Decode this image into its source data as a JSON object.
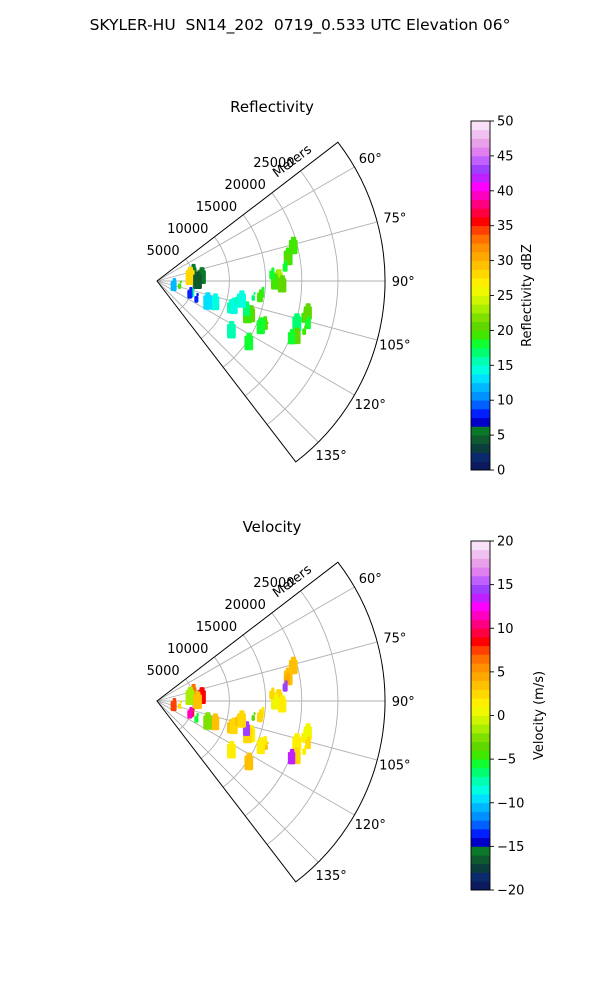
{
  "figure": {
    "title": "SKYLER-HU  SN14_202  0719_0.533 UTC Elevation 06°"
  },
  "chart_data": [
    {
      "type": "heatmap",
      "subtype": "radar-ppi-sector",
      "title": "Reflectivity",
      "radial_axis_label": "Meters",
      "radial_ticks": [
        5000,
        10000,
        15000,
        20000,
        25000
      ],
      "radial_tick_labels": [
        "5000",
        "10000",
        "15000",
        "20000",
        "25000"
      ],
      "r_max": 31500,
      "angle_ticks": [
        60,
        75,
        90,
        105,
        120,
        135
      ],
      "angle_tick_labels": [
        "60°",
        "75°",
        "90°",
        "105°",
        "120°",
        "135°"
      ],
      "angle_range_deg": [
        52.5,
        142.5
      ],
      "grid": true,
      "colorbar": {
        "label": "Reflectivity dBZ",
        "min": 0,
        "max": 50,
        "ticks": [
          0,
          5,
          10,
          15,
          20,
          25,
          30,
          35,
          40,
          45,
          50
        ],
        "tick_labels": [
          "0",
          "5",
          "10",
          "15",
          "20",
          "25",
          "30",
          "35",
          "40",
          "45",
          "50"
        ],
        "colors": [
          "#0a1a5c",
          "#0b2a6e",
          "#0b3d3d",
          "#0e5a2e",
          "#0a7a2a",
          "#0000c8",
          "#0020ff",
          "#0060ff",
          "#0090ff",
          "#00b8ff",
          "#00e0ff",
          "#00ffe0",
          "#00ffb0",
          "#00ff70",
          "#10ff30",
          "#40e800",
          "#60d800",
          "#80e000",
          "#a8ee00",
          "#d0f500",
          "#f0f800",
          "#ffee00",
          "#ffd800",
          "#ffc000",
          "#ffa800",
          "#ff9000",
          "#ff7000",
          "#ff4000",
          "#ff0000",
          "#ff0040",
          "#ff0080",
          "#ff00c0",
          "#ff00ff",
          "#c020ff",
          "#a040ff",
          "#c060ff",
          "#e080f0",
          "#e8a0e8",
          "#f0c0f0",
          "#f8e0f8"
        ]
      },
      "echoes": [
        {
          "r": 16500,
          "az": 88,
          "v": 20
        },
        {
          "r": 16800,
          "az": 89,
          "v": 23
        },
        {
          "r": 17000,
          "az": 90,
          "v": 22
        },
        {
          "r": 16300,
          "az": 91,
          "v": 19
        },
        {
          "r": 15900,
          "az": 87,
          "v": 18
        },
        {
          "r": 17300,
          "az": 92,
          "v": 20
        },
        {
          "r": 18400,
          "az": 80,
          "v": 19
        },
        {
          "r": 18200,
          "az": 81,
          "v": 20
        },
        {
          "r": 17800,
          "az": 84,
          "v": 18
        },
        {
          "r": 19400,
          "az": 76,
          "v": 19
        },
        {
          "r": 21000,
          "az": 104,
          "v": 19
        },
        {
          "r": 21300,
          "az": 102,
          "v": 20
        },
        {
          "r": 21700,
          "az": 106,
          "v": 18
        },
        {
          "r": 20200,
          "az": 107,
          "v": 17
        },
        {
          "r": 21500,
          "az": 109,
          "v": 19
        },
        {
          "r": 20800,
          "az": 112,
          "v": 20
        },
        {
          "r": 20200,
          "az": 113,
          "v": 18
        },
        {
          "r": 16000,
          "az": 112,
          "v": 19
        },
        {
          "r": 16400,
          "az": 113,
          "v": 20
        },
        {
          "r": 15700,
          "az": 114,
          "v": 18
        },
        {
          "r": 13800,
          "az": 110,
          "v": 20
        },
        {
          "r": 13400,
          "az": 111,
          "v": 19
        },
        {
          "r": 13000,
          "az": 108,
          "v": 17
        },
        {
          "r": 10800,
          "az": 110,
          "v": 15
        },
        {
          "r": 11200,
          "az": 109,
          "v": 14
        },
        {
          "r": 11500,
          "az": 104,
          "v": 15
        },
        {
          "r": 12000,
          "az": 103,
          "v": 14
        },
        {
          "r": 13500,
          "az": 100,
          "v": 17
        },
        {
          "r": 14600,
          "az": 97,
          "v": 18
        },
        {
          "r": 14400,
          "az": 99,
          "v": 19
        },
        {
          "r": 8600,
          "az": 111,
          "v": 14
        },
        {
          "r": 7600,
          "az": 113,
          "v": 13
        },
        {
          "r": 5200,
          "az": 110,
          "v": 16
        },
        {
          "r": 4900,
          "az": 112,
          "v": 8
        },
        {
          "r": 3200,
          "az": 103,
          "v": 19
        },
        {
          "r": 2400,
          "az": 107,
          "v": 12
        },
        {
          "r": 6200,
          "az": 85,
          "v": 5
        },
        {
          "r": 5100,
          "az": 77,
          "v": 6
        },
        {
          "r": 4600,
          "az": 84,
          "v": 28
        },
        {
          "r": 5600,
          "az": 91,
          "v": 4
        },
        {
          "r": 6000,
          "az": 115,
          "v": 8
        },
        {
          "r": 15300,
          "az": 124,
          "v": 18
        },
        {
          "r": 12400,
          "az": 124,
          "v": 16
        }
      ]
    },
    {
      "type": "heatmap",
      "subtype": "radar-ppi-sector",
      "title": "Velocity",
      "radial_axis_label": "Meters",
      "radial_ticks": [
        5000,
        10000,
        15000,
        20000,
        25000
      ],
      "radial_tick_labels": [
        "5000",
        "10000",
        "15000",
        "20000",
        "25000"
      ],
      "r_max": 31500,
      "angle_ticks": [
        60,
        75,
        90,
        105,
        120,
        135
      ],
      "angle_tick_labels": [
        "60°",
        "75°",
        "90°",
        "105°",
        "120°",
        "135°"
      ],
      "angle_range_deg": [
        52.5,
        142.5
      ],
      "grid": true,
      "colorbar": {
        "label": "Velocity (m/s)",
        "min": -20,
        "max": 20,
        "ticks": [
          -20,
          -15,
          -10,
          -5,
          0,
          5,
          10,
          15,
          20
        ],
        "tick_labels": [
          "−20",
          "−15",
          "−10",
          "−5",
          "0",
          "5",
          "10",
          "15",
          "20"
        ],
        "colors": [
          "#0a1a5c",
          "#0b2a6e",
          "#0b3d3d",
          "#0e5a2e",
          "#0a7a2a",
          "#0000c8",
          "#0020ff",
          "#0060ff",
          "#0090ff",
          "#00b8ff",
          "#00e0ff",
          "#00ffe0",
          "#00ffb0",
          "#00ff70",
          "#10ff30",
          "#40e800",
          "#60d800",
          "#80e000",
          "#a8ee00",
          "#d0f500",
          "#f0f800",
          "#ffee00",
          "#ffd800",
          "#ffc000",
          "#ffa800",
          "#ff9000",
          "#ff7000",
          "#ff4000",
          "#ff0000",
          "#ff0040",
          "#ff0080",
          "#ff00c0",
          "#ff00ff",
          "#c020ff",
          "#a040ff",
          "#c060ff",
          "#e080f0",
          "#e8a0e8",
          "#f0c0f0",
          "#f8e0f8"
        ]
      },
      "echoes": [
        {
          "r": 16500,
          "az": 88,
          "v": 1
        },
        {
          "r": 16800,
          "az": 89,
          "v": 2
        },
        {
          "r": 17000,
          "az": 90,
          "v": 1
        },
        {
          "r": 16300,
          "az": 91,
          "v": 0
        },
        {
          "r": 15900,
          "az": 87,
          "v": 2
        },
        {
          "r": 17300,
          "az": 92,
          "v": 1
        },
        {
          "r": 18400,
          "az": 80,
          "v": 3
        },
        {
          "r": 18200,
          "az": 81,
          "v": 4
        },
        {
          "r": 17800,
          "az": 84,
          "v": 14
        },
        {
          "r": 19400,
          "az": 76,
          "v": 3
        },
        {
          "r": 21000,
          "az": 104,
          "v": 1
        },
        {
          "r": 21300,
          "az": 102,
          "v": 0
        },
        {
          "r": 21700,
          "az": 106,
          "v": 2
        },
        {
          "r": 20200,
          "az": 107,
          "v": 1
        },
        {
          "r": 21500,
          "az": 109,
          "v": 1
        },
        {
          "r": 20800,
          "az": 112,
          "v": 2
        },
        {
          "r": 20200,
          "az": 113,
          "v": 13
        },
        {
          "r": 16000,
          "az": 112,
          "v": 1
        },
        {
          "r": 16400,
          "az": 113,
          "v": 3
        },
        {
          "r": 15700,
          "az": 114,
          "v": 1
        },
        {
          "r": 13800,
          "az": 110,
          "v": 1
        },
        {
          "r": 13400,
          "az": 111,
          "v": 2
        },
        {
          "r": 13000,
          "az": 108,
          "v": 14
        },
        {
          "r": 10800,
          "az": 110,
          "v": 3
        },
        {
          "r": 11200,
          "az": 109,
          "v": 2
        },
        {
          "r": 11500,
          "az": 104,
          "v": 3
        },
        {
          "r": 12000,
          "az": 103,
          "v": 2
        },
        {
          "r": 13500,
          "az": 100,
          "v": -4
        },
        {
          "r": 14600,
          "az": 97,
          "v": 1
        },
        {
          "r": 14400,
          "az": 99,
          "v": 2
        },
        {
          "r": 8600,
          "az": 111,
          "v": 3
        },
        {
          "r": 7600,
          "az": 113,
          "v": -3
        },
        {
          "r": 5200,
          "az": 110,
          "v": 9
        },
        {
          "r": 4900,
          "az": 112,
          "v": 11
        },
        {
          "r": 3200,
          "az": 103,
          "v": 2
        },
        {
          "r": 2400,
          "az": 107,
          "v": 7
        },
        {
          "r": 6200,
          "az": 85,
          "v": 8
        },
        {
          "r": 5100,
          "az": 77,
          "v": 6
        },
        {
          "r": 4600,
          "az": 84,
          "v": -2
        },
        {
          "r": 5600,
          "az": 91,
          "v": 3
        },
        {
          "r": 6000,
          "az": 115,
          "v": -6
        },
        {
          "r": 15300,
          "az": 124,
          "v": 3
        },
        {
          "r": 12400,
          "az": 124,
          "v": 1
        }
      ]
    }
  ]
}
